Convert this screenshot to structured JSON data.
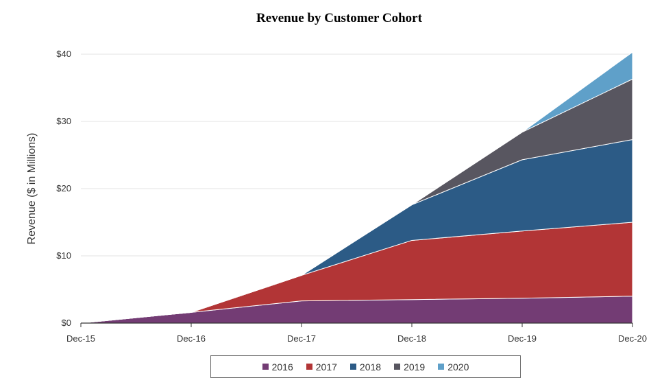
{
  "chart_data": {
    "type": "area",
    "stacked": true,
    "title": "Revenue by Customer Cohort",
    "ylabel": "Revenue  ($ in Millions)",
    "xlabel": "",
    "categories": [
      "Dec-15",
      "Dec-16",
      "Dec-17",
      "Dec-18",
      "Dec-19",
      "Dec-20"
    ],
    "ylim": [
      0,
      40
    ],
    "yticks": [
      {
        "value": 0,
        "label": "$0"
      },
      {
        "value": 10,
        "label": "$10"
      },
      {
        "value": 20,
        "label": "$20"
      },
      {
        "value": 30,
        "label": "$30"
      },
      {
        "value": 40,
        "label": "$40"
      }
    ],
    "grid": true,
    "legend_position": "bottom",
    "series": [
      {
        "name": "2016",
        "color": "#733c74",
        "values": [
          0,
          1.6,
          3.3,
          3.5,
          3.7,
          4.0
        ]
      },
      {
        "name": "2017",
        "color": "#b23536",
        "values": [
          0,
          0,
          3.8,
          8.8,
          10.0,
          11.0
        ]
      },
      {
        "name": "2018",
        "color": "#2c5b86",
        "values": [
          0,
          0,
          0,
          5.3,
          10.6,
          12.3
        ]
      },
      {
        "name": "2019",
        "color": "#585660",
        "values": [
          0,
          0,
          0,
          0,
          4.1,
          9.0
        ]
      },
      {
        "name": "2020",
        "color": "#5fa0c9",
        "values": [
          0,
          0,
          0,
          0,
          0,
          4.0
        ]
      }
    ]
  }
}
